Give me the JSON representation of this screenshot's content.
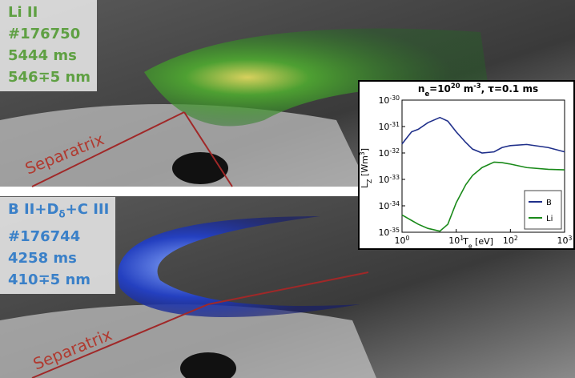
{
  "panels": [
    {
      "lines": [
        "Li II",
        "#176750",
        "5444 ms",
        "546∓5 nm"
      ],
      "annotation": "Separatrix"
    },
    {
      "lines": [
        "B II+D_{δ}+C III",
        "#176744",
        "4258 ms",
        "410∓5 nm"
      ],
      "annotation": "Separatrix"
    }
  ],
  "chart_data": {
    "type": "line",
    "title": "n_{e}=10^{20} m^{-3}, τ=0.1 ms",
    "xlabel": "T_{e} [eV]",
    "ylabel": "L_{Z} [Wm^{3}]",
    "xscale": "log",
    "yscale": "log",
    "xlim": [
      1,
      1000
    ],
    "ylim": [
      1e-35,
      1e-30
    ],
    "xticks": [
      {
        "value": 1,
        "label": "10^{0}"
      },
      {
        "value": 10,
        "label": "10^{1}"
      },
      {
        "value": 100,
        "label": "10^{2}"
      },
      {
        "value": 1000,
        "label": "10^{3}"
      }
    ],
    "yticks": [
      {
        "value": 1e-35,
        "label": "10^{-35}"
      },
      {
        "value": 1e-34,
        "label": "10^{-34}"
      },
      {
        "value": 1e-33,
        "label": "10^{-33}"
      },
      {
        "value": 1e-32,
        "label": "10^{-32}"
      },
      {
        "value": 1e-31,
        "label": "10^{-31}"
      },
      {
        "value": 1e-30,
        "label": "10^{-30}"
      }
    ],
    "legend": "lower right",
    "x": [
      1,
      1.5,
      2,
      3,
      5,
      7,
      10,
      15,
      20,
      30,
      50,
      70,
      100,
      200,
      500,
      1000
    ],
    "series": [
      {
        "name": "B",
        "color": "#1f2f8a",
        "values": [
          2.2e-32,
          6.3e-32,
          7.9e-32,
          1.4e-31,
          2.2e-31,
          1.6e-31,
          6.3e-32,
          2.5e-32,
          1.4e-32,
          1e-32,
          1.1e-32,
          1.6e-32,
          1.9e-32,
          2.1e-32,
          1.6e-32,
          1.1e-32
        ]
      },
      {
        "name": "Li",
        "color": "#1a8a1a",
        "values": [
          4.5e-35,
          2.8e-35,
          2e-35,
          1.4e-35,
          1.1e-35,
          2e-35,
          1.3e-34,
          6.3e-34,
          1.4e-33,
          2.8e-33,
          4.5e-33,
          4.3e-33,
          3.8e-33,
          2.8e-33,
          2.4e-33,
          2.3e-33
        ]
      }
    ]
  }
}
